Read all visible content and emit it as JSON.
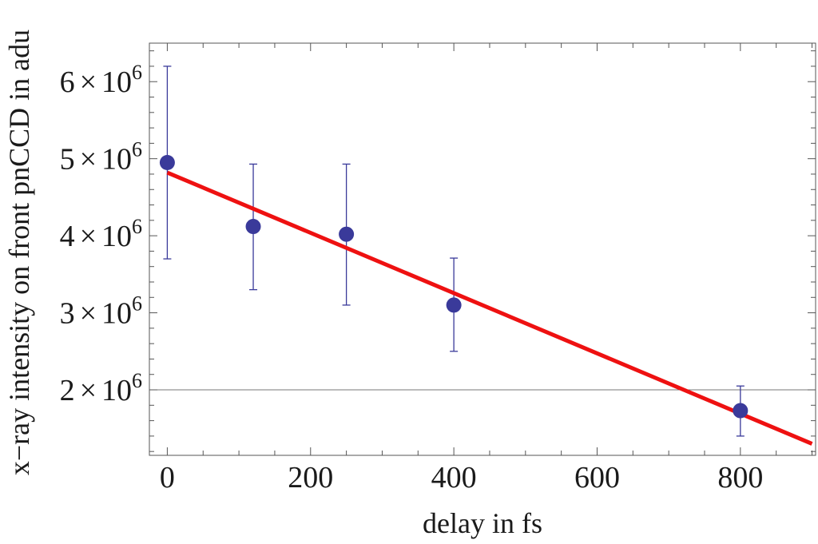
{
  "chart_data": {
    "type": "scatter",
    "title": "",
    "xlabel": "delay in fs",
    "ylabel": "x−ray intensity on front pnCCD in adu",
    "xlim": [
      -25,
      905
    ],
    "ylim": [
      1150000,
      6500000
    ],
    "grid": false,
    "reference_line_y": 2000000,
    "x_ticks": [
      {
        "value": 0,
        "label": "0"
      },
      {
        "value": 200,
        "label": "200"
      },
      {
        "value": 400,
        "label": "400"
      },
      {
        "value": 600,
        "label": "600"
      },
      {
        "value": 800,
        "label": "800"
      }
    ],
    "y_ticks": [
      {
        "value": 2000000,
        "mantissa": "2",
        "times": "×",
        "base": "10",
        "exponent": "6"
      },
      {
        "value": 3000000,
        "mantissa": "3",
        "times": "×",
        "base": "10",
        "exponent": "6"
      },
      {
        "value": 4000000,
        "mantissa": "4",
        "times": "×",
        "base": "10",
        "exponent": "6"
      },
      {
        "value": 5000000,
        "mantissa": "5",
        "times": "×",
        "base": "10",
        "exponent": "6"
      },
      {
        "value": 6000000,
        "mantissa": "6",
        "times": "×",
        "base": "10",
        "exponent": "6"
      }
    ],
    "points": [
      {
        "x": 0,
        "y": 4950000,
        "err_low": 3700000,
        "err_high": 6200000
      },
      {
        "x": 120,
        "y": 4120000,
        "err_low": 3300000,
        "err_high": 4930000
      },
      {
        "x": 250,
        "y": 4020000,
        "err_low": 3100000,
        "err_high": 4930000
      },
      {
        "x": 400,
        "y": 3100000,
        "err_low": 2500000,
        "err_high": 3710000
      },
      {
        "x": 800,
        "y": 1730000,
        "err_low": 1400000,
        "err_high": 2050000
      }
    ],
    "fit_line": {
      "x": [
        0,
        900
      ],
      "y": [
        4820000,
        1300000
      ]
    },
    "colors": {
      "points": "#3a3a9a",
      "fit": "#ee1111",
      "frame": "#555555",
      "reference": "#777777"
    }
  }
}
